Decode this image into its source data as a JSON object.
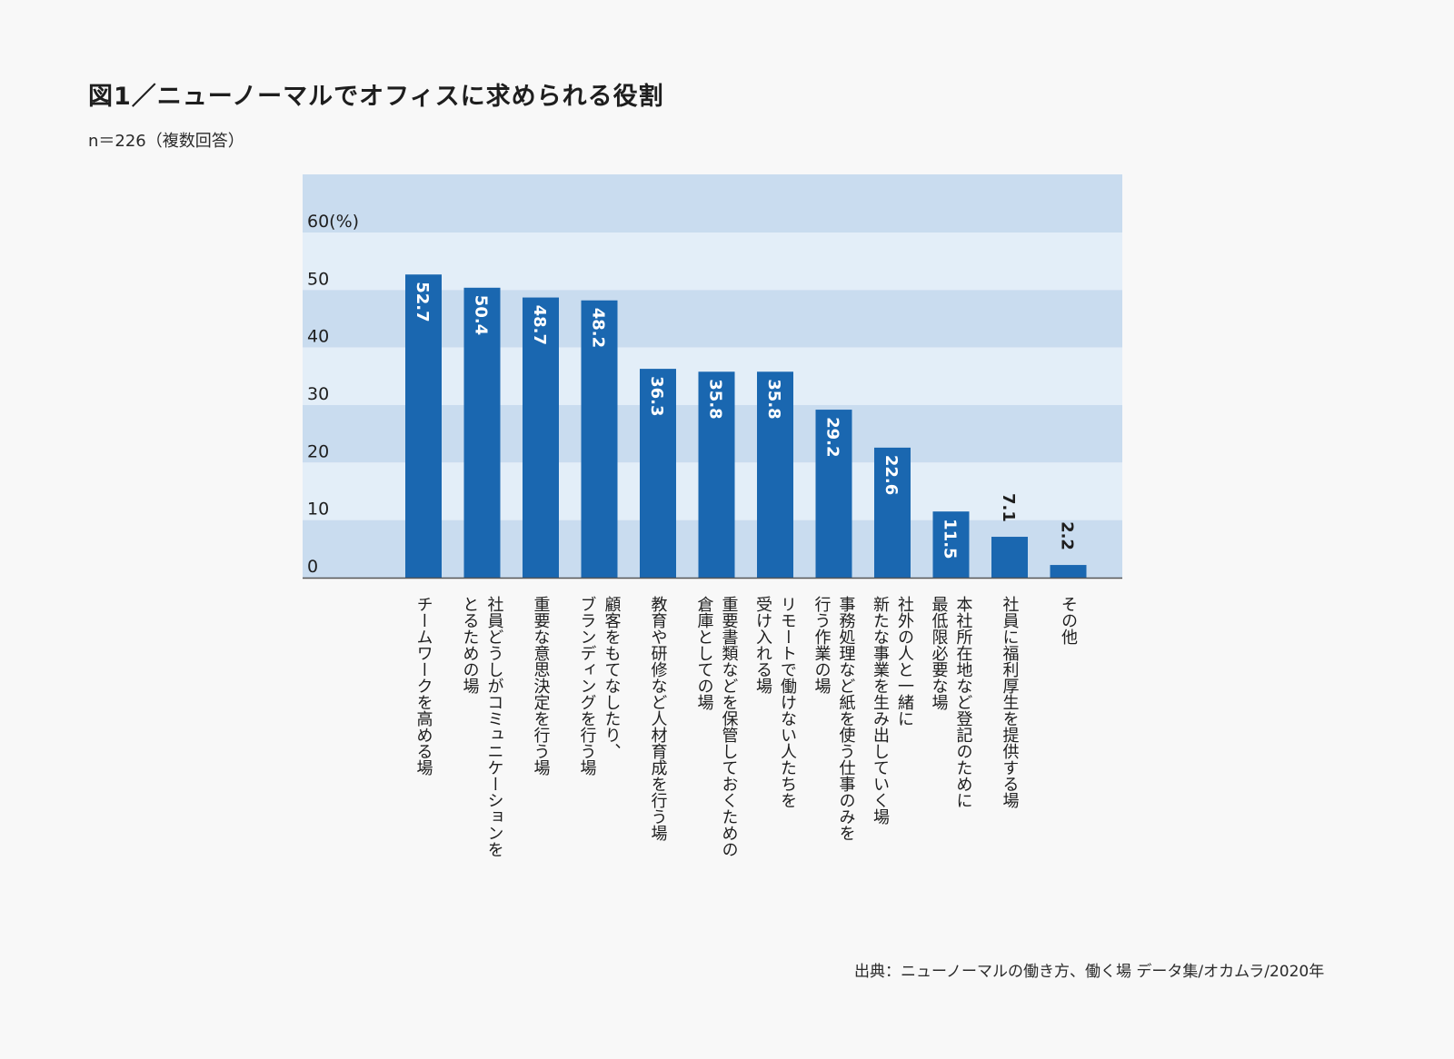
{
  "title": "図1／ニューノーマルでオフィスに求められる役割",
  "subtitle": "n＝226（複数回答）",
  "source": "出典：ニューノーマルの働き方、働く場 データ集/オカムラ/2020年",
  "colors": {
    "bar": "#1a67b0",
    "band_dark": "#c9dcef",
    "band_light": "#e3eef8",
    "background": "#f8f8f8",
    "axis": "#555555"
  },
  "chart_data": {
    "type": "bar",
    "title": "図1／ニューノーマルでオフィスに求められる役割",
    "subtitle": "n＝226（複数回答）",
    "xlabel": "",
    "ylabel": "(%)",
    "ylim": [
      0,
      60
    ],
    "yticks": [
      0,
      10,
      20,
      30,
      40,
      50,
      60
    ],
    "ytick_labels": [
      "0",
      "10",
      "20",
      "30",
      "40",
      "50",
      "60(%)"
    ],
    "grid": "alternating horizontal bands",
    "categories": [
      "チームワークを高める場",
      "社員どうしがコミュニケーションを\nとるための場",
      "重要な意思決定を行う場",
      "顧客をもてなしたり、\nブランディングを行う場",
      "教育や研修など人材育成を行う場",
      "重要書類などを保管しておくための\n倉庫としての場",
      "リモートで働けない人たちを\n受け入れる場",
      "事務処理など紙を使う仕事のみを\n行う作業の場",
      "社外の人と一緒に\n新たな事業を生み出していく場",
      "本社所在地など登記のために\n最低限必要な場",
      "社員に福利厚生を提供する場",
      "その他"
    ],
    "values": [
      52.7,
      50.4,
      48.7,
      48.2,
      36.3,
      35.8,
      35.8,
      29.2,
      22.6,
      11.5,
      7.1,
      2.2
    ],
    "value_labels": [
      "52.7",
      "50.4",
      "48.7",
      "48.2",
      "36.3",
      "35.8",
      "35.8",
      "29.2",
      "22.6",
      "11.5",
      "7.1",
      "2.2"
    ],
    "source": "出典：ニューノーマルの働き方、働く場 データ集/オカムラ/2020年"
  }
}
